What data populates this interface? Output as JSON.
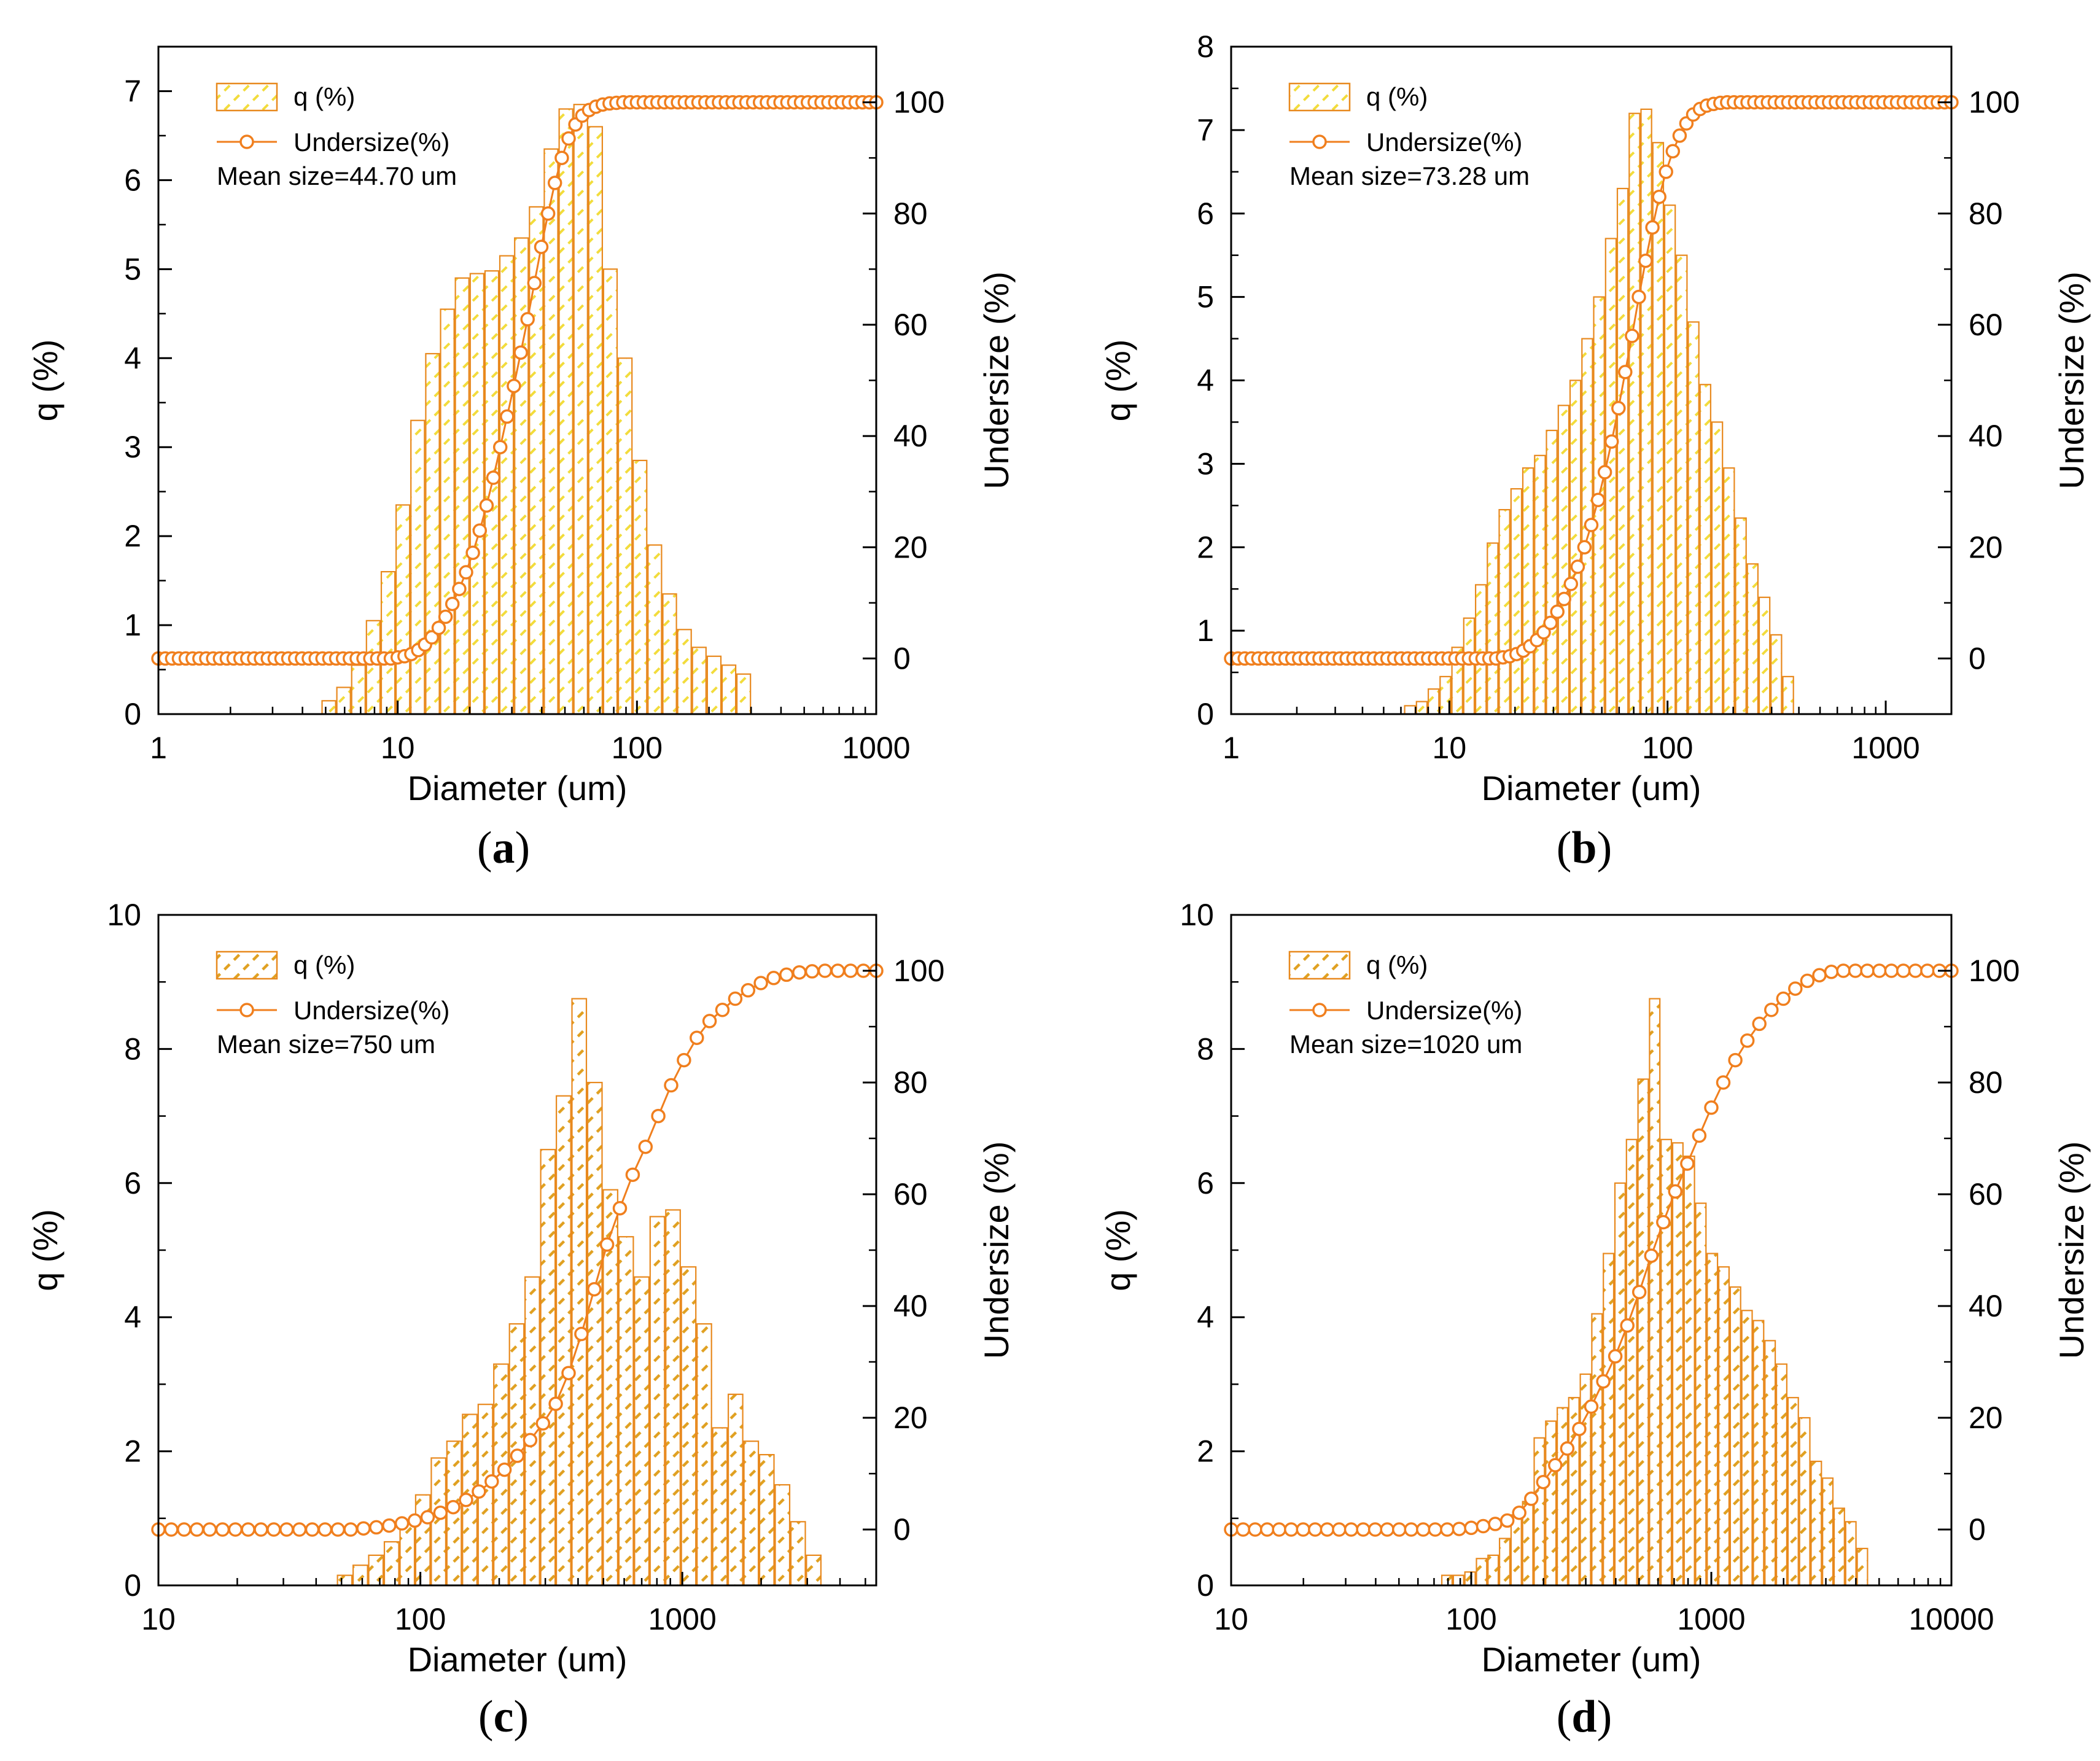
{
  "figure": {
    "captions": [
      "a",
      "b",
      "c",
      "d"
    ]
  },
  "colors": {
    "bar_edge": "#E8891E",
    "hatch_light": "#F2DC3C",
    "hatch_dark": "#E0A020",
    "undersize_line": "#F07F1E"
  },
  "chart_data": [
    {
      "id": "a",
      "type": "bar+line",
      "xlabel": "Diameter (um)",
      "ylabel": "q (%)",
      "y2label": "Undersize (%)",
      "xscale": "log",
      "xlim": [
        1,
        1000
      ],
      "xticks": [
        1,
        10,
        100,
        1000
      ],
      "xtick_labels": [
        "1",
        "10",
        "100",
        "1000"
      ],
      "ylim": [
        0,
        7.5
      ],
      "yticks": [
        0,
        1,
        2,
        3,
        4,
        5,
        6,
        7
      ],
      "y2lim": [
        -10,
        110
      ],
      "y2ticks": [
        0,
        20,
        40,
        60,
        80,
        100
      ],
      "hatch": "light",
      "legend": {
        "placement": "top-left",
        "entries": [
          "q (%)",
          "Undersize(%)"
        ]
      },
      "annotation": "Mean size=44.70 um",
      "bars": {
        "name": "q (%)",
        "x_start": 4.8,
        "x_end": 300,
        "values": [
          0.15,
          0.3,
          0.55,
          1.05,
          1.6,
          2.35,
          3.3,
          4.05,
          4.55,
          4.9,
          4.95,
          4.98,
          5.15,
          5.35,
          5.7,
          6.35,
          6.8,
          6.85,
          6.6,
          5.0,
          4.0,
          2.85,
          1.9,
          1.35,
          0.95,
          0.75,
          0.65,
          0.55,
          0.45
        ]
      },
      "series": [
        {
          "name": "Undersize(%)",
          "x_start": 1,
          "x_end": 1000,
          "values": [
            0,
            0,
            0,
            0,
            0,
            0,
            0,
            0,
            0,
            0,
            0,
            0,
            0,
            0,
            0,
            0,
            0,
            0,
            0,
            0,
            0,
            0,
            0,
            0,
            0,
            0,
            0,
            0,
            0,
            0,
            0,
            0,
            0,
            0,
            0,
            0.2,
            0.4,
            0.8,
            1.5,
            2.5,
            3.8,
            5.5,
            7.5,
            9.8,
            12.5,
            15.5,
            19.0,
            23.0,
            27.5,
            32.5,
            38.0,
            43.5,
            49.0,
            55.0,
            61.0,
            67.5,
            74.0,
            80.0,
            85.5,
            90.0,
            93.5,
            96.0,
            97.6,
            98.6,
            99.2,
            99.6,
            99.8,
            99.9,
            100,
            100,
            100,
            100,
            100,
            100,
            100,
            100,
            100,
            100,
            100,
            100,
            100,
            100,
            100,
            100,
            100,
            100,
            100,
            100,
            100,
            100,
            100,
            100,
            100,
            100,
            100,
            100,
            100,
            100,
            100,
            100,
            100,
            100,
            100,
            100,
            100,
            100
          ]
        }
      ]
    },
    {
      "id": "b",
      "type": "bar+line",
      "xlabel": "Diameter (um)",
      "ylabel": "q (%)",
      "y2label": "Undersize (%)",
      "xscale": "log",
      "xlim": [
        1,
        2000
      ],
      "xticks": [
        1,
        10,
        100,
        1000
      ],
      "xtick_labels": [
        "1",
        "10",
        "100",
        "1000"
      ],
      "ylim": [
        0,
        8
      ],
      "yticks": [
        0,
        1,
        2,
        3,
        4,
        5,
        6,
        7,
        8
      ],
      "y2lim": [
        -10,
        110
      ],
      "y2ticks": [
        0,
        20,
        40,
        60,
        80,
        100
      ],
      "hatch": "light",
      "legend": {
        "placement": "top-left",
        "entries": [
          "q (%)",
          "Undersize(%)"
        ]
      },
      "annotation": "Mean size=73.28 um",
      "bars": {
        "name": "q (%)",
        "x_start": 6.2,
        "x_end": 380,
        "values": [
          0.1,
          0.15,
          0.3,
          0.45,
          0.8,
          1.15,
          1.55,
          2.05,
          2.45,
          2.7,
          2.95,
          3.1,
          3.4,
          3.7,
          4.0,
          4.5,
          5.0,
          5.7,
          6.3,
          7.2,
          7.25,
          6.85,
          6.1,
          5.5,
          4.7,
          3.95,
          3.5,
          2.95,
          2.35,
          1.8,
          1.4,
          0.95,
          0.45
        ]
      },
      "series": [
        {
          "name": "Undersize(%)",
          "x_start": 1,
          "x_end": 2000,
          "values": [
            0,
            0,
            0,
            0,
            0,
            0,
            0,
            0,
            0,
            0,
            0,
            0,
            0,
            0,
            0,
            0,
            0,
            0,
            0,
            0,
            0,
            0,
            0,
            0,
            0,
            0,
            0,
            0,
            0,
            0,
            0,
            0,
            0,
            0,
            0,
            0,
            0,
            0,
            0,
            0,
            0.2,
            0.4,
            0.8,
            1.4,
            2.2,
            3.3,
            4.7,
            6.4,
            8.4,
            10.7,
            13.4,
            16.5,
            20.0,
            24.0,
            28.5,
            33.5,
            39.0,
            45.0,
            51.5,
            58.0,
            65.0,
            71.5,
            77.5,
            83.0,
            87.5,
            91.2,
            94.0,
            96.2,
            97.8,
            98.8,
            99.4,
            99.7,
            99.9,
            100,
            100,
            100,
            100,
            100,
            100,
            100,
            100,
            100,
            100,
            100,
            100,
            100,
            100,
            100,
            100,
            100,
            100,
            100,
            100,
            100,
            100,
            100,
            100,
            100,
            100,
            100,
            100,
            100,
            100,
            100,
            100,
            100,
            100
          ]
        }
      ]
    },
    {
      "id": "c",
      "type": "bar+line",
      "xlabel": "Diameter (um)",
      "ylabel": "q (%)",
      "y2label": "Undersize (%)",
      "xscale": "log",
      "xlim": [
        10,
        5500
      ],
      "xticks": [
        10,
        100,
        1000
      ],
      "xtick_labels": [
        "10",
        "100",
        "1000"
      ],
      "ylim": [
        0,
        10
      ],
      "yticks": [
        0,
        2,
        4,
        6,
        8,
        10
      ],
      "y2lim": [
        -10,
        110
      ],
      "y2ticks": [
        0,
        20,
        40,
        60,
        80,
        100
      ],
      "hatch": "dark",
      "legend": {
        "placement": "top-left",
        "entries": [
          "q (%)",
          "Undersize(%)"
        ]
      },
      "annotation": "Mean size=750 um",
      "bars": {
        "name": "q (%)",
        "x_start": 48,
        "x_end": 3400,
        "values": [
          0.15,
          0.3,
          0.45,
          0.65,
          0.95,
          1.35,
          1.9,
          2.15,
          2.55,
          2.7,
          3.3,
          3.9,
          4.6,
          6.5,
          7.3,
          8.75,
          7.5,
          5.9,
          5.2,
          4.6,
          5.5,
          5.6,
          4.75,
          3.9,
          2.35,
          2.85,
          2.15,
          1.95,
          1.5,
          0.95,
          0.45
        ]
      },
      "series": [
        {
          "name": "Undersize(%)",
          "x_start": 10,
          "x_end": 5500,
          "values": [
            0,
            0,
            0,
            0,
            0,
            0,
            0,
            0,
            0,
            0,
            0,
            0,
            0,
            0,
            0,
            0,
            0.2,
            0.4,
            0.7,
            1.1,
            1.6,
            2.2,
            3.0,
            4.0,
            5.3,
            6.8,
            8.6,
            10.7,
            13.2,
            16.0,
            19.0,
            22.5,
            28.0,
            35.0,
            43.0,
            51.0,
            57.5,
            63.5,
            68.5,
            74.0,
            79.5,
            84.0,
            88.0,
            91.0,
            93.0,
            95.0,
            96.5,
            97.8,
            98.7,
            99.3,
            99.7,
            99.9,
            100,
            100,
            100,
            100,
            100
          ]
        }
      ]
    },
    {
      "id": "d",
      "type": "bar+line",
      "xlabel": "Diameter (um)",
      "ylabel": "q (%)",
      "y2label": "Undersize (%)",
      "xscale": "log",
      "xlim": [
        10,
        10000
      ],
      "xticks": [
        10,
        100,
        1000,
        10000
      ],
      "xtick_labels": [
        "10",
        "100",
        "1000",
        "10000"
      ],
      "ylim": [
        0,
        10
      ],
      "yticks": [
        0,
        2,
        4,
        6,
        8,
        10
      ],
      "y2lim": [
        -10,
        110
      ],
      "y2ticks": [
        0,
        20,
        40,
        60,
        80,
        100
      ],
      "hatch": "dark",
      "legend": {
        "placement": "top-left",
        "entries": [
          "q (%)",
          "Undersize(%)"
        ]
      },
      "annotation": "Mean size=1020 um",
      "bars": {
        "name": "q (%)",
        "x_start": 75,
        "x_end": 4500,
        "values": [
          0.15,
          0.15,
          0.2,
          0.4,
          0.45,
          0.7,
          1.05,
          1.25,
          2.2,
          2.45,
          2.65,
          2.8,
          3.15,
          4.05,
          4.95,
          6.0,
          6.65,
          7.55,
          8.75,
          6.65,
          6.6,
          6.4,
          5.7,
          4.95,
          4.75,
          4.45,
          4.1,
          3.95,
          3.65,
          3.3,
          2.8,
          2.5,
          1.85,
          1.6,
          1.15,
          0.95,
          0.55
        ]
      },
      "series": [
        {
          "name": "Undersize(%)",
          "x_start": 10,
          "x_end": 10000,
          "values": [
            0,
            0,
            0,
            0,
            0,
            0,
            0,
            0,
            0,
            0,
            0,
            0,
            0,
            0,
            0,
            0,
            0,
            0,
            0,
            0.1,
            0.3,
            0.6,
            1.0,
            1.6,
            3.0,
            5.5,
            8.5,
            11.5,
            14.5,
            18.0,
            22.0,
            26.5,
            31.0,
            36.5,
            42.5,
            49.0,
            55.0,
            60.5,
            65.5,
            70.5,
            75.5,
            80.0,
            84.0,
            87.5,
            90.5,
            93.0,
            95.0,
            96.8,
            98.2,
            99.2,
            99.8,
            100,
            100,
            100,
            100,
            100,
            100,
            100,
            100,
            100,
            100
          ]
        }
      ]
    }
  ]
}
